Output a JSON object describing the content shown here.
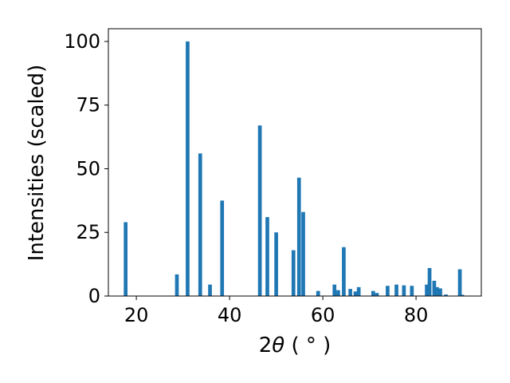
{
  "chart_data": {
    "type": "bar",
    "xlabel_prefix": "2",
    "xlabel_symbol": "θ",
    "xlabel_unit": "( ° )",
    "ylabel": "Intensities (scaled)",
    "xlim": [
      14,
      94
    ],
    "ylim": [
      0,
      105
    ],
    "xticks": [
      20,
      40,
      60,
      80
    ],
    "yticks": [
      0,
      25,
      50,
      75,
      100
    ],
    "grid": false,
    "color": "#1f77b4",
    "bar_width": 0.8,
    "x": [
      17.7,
      28.7,
      31.0,
      33.7,
      35.8,
      38.4,
      46.5,
      48.1,
      50.0,
      53.7,
      54.9,
      55.8,
      59.0,
      62.5,
      63.3,
      64.5,
      65.9,
      67.0,
      67.7,
      70.8,
      71.6,
      73.9,
      75.8,
      77.4,
      79.1,
      82.3,
      82.9,
      83.9,
      84.5,
      85.2,
      86.4,
      89.4,
      89.9
    ],
    "values": [
      29,
      8.5,
      100,
      56,
      4.5,
      37.5,
      67,
      31,
      25,
      18,
      46.5,
      33,
      2,
      4.5,
      2.3,
      19.2,
      2.8,
      1.8,
      3.5,
      2,
      1.2,
      4,
      4.5,
      4.2,
      4,
      4.5,
      11,
      6,
      3.5,
      3,
      0.6,
      10.5,
      0.5
    ]
  }
}
